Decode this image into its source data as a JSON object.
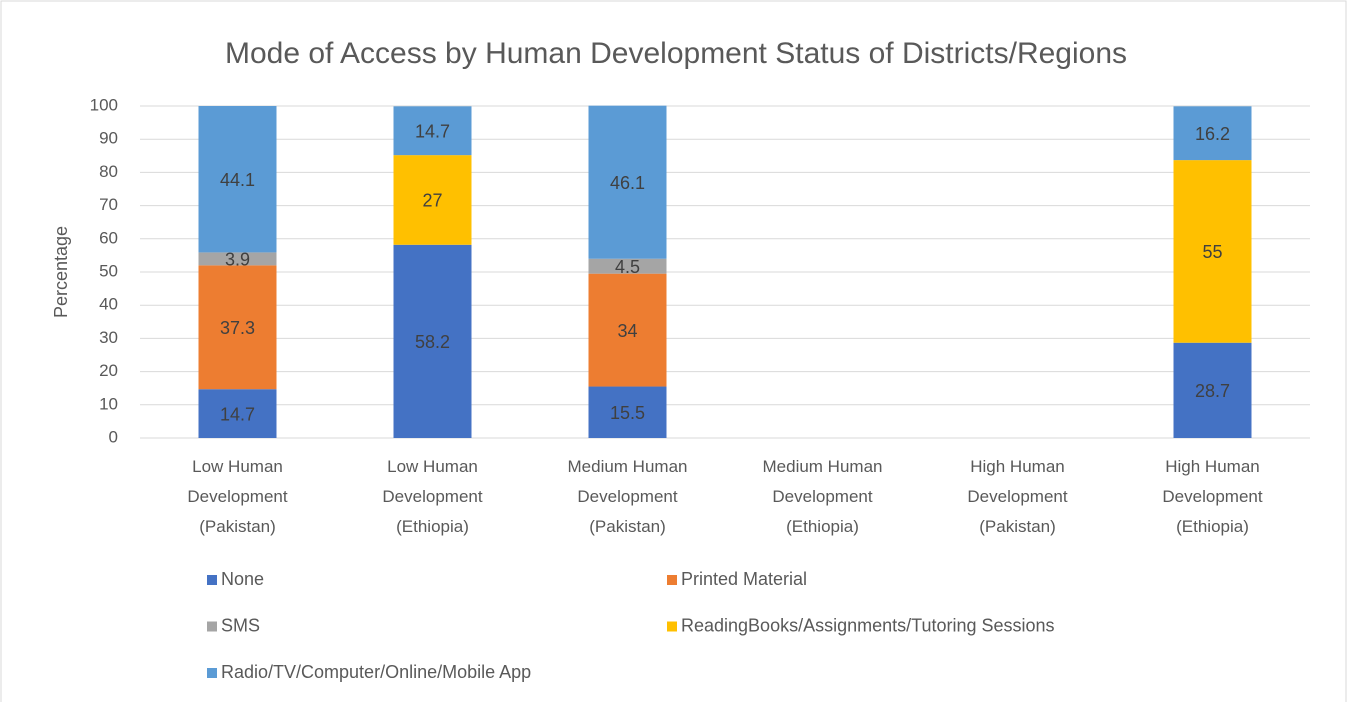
{
  "chart_data": {
    "type": "stacked_bar",
    "title": "Mode of Access by Human Development Status of Districts/Regions",
    "y_label": "Percentage",
    "categories": [
      "Low Human Development (Pakistan)",
      "Low Human Development (Ethiopia)",
      "Medium Human Development (Pakistan)",
      "Medium Human Development (Ethiopia)",
      "High Human Development (Pakistan)",
      "High Human Development (Ethiopia)"
    ],
    "series": [
      {
        "name": "None",
        "color": "#4472c4",
        "values": [
          14.7,
          58.2,
          15.5,
          null,
          null,
          28.7
        ]
      },
      {
        "name": "Printed Material",
        "color": "#ed7d31",
        "values": [
          37.3,
          null,
          34,
          null,
          null,
          null
        ]
      },
      {
        "name": "SMS",
        "color": "#a5a5a5",
        "values": [
          3.9,
          null,
          4.5,
          null,
          null,
          null
        ]
      },
      {
        "name": "ReadingBooks/Assignments/Tutoring Sessions",
        "color": "#ffc000",
        "values": [
          null,
          27,
          null,
          null,
          null,
          55
        ]
      },
      {
        "name": "Radio/TV/Computer/Online/Mobile App",
        "color": "#5b9bd5",
        "values": [
          44.1,
          14.7,
          46.1,
          null,
          null,
          16.2
        ]
      }
    ],
    "ylim": [
      0,
      100
    ],
    "yticks": [
      0,
      10,
      20,
      30,
      40,
      50,
      60,
      70,
      80,
      90,
      100
    ],
    "grid": true,
    "legend": "bottom"
  }
}
